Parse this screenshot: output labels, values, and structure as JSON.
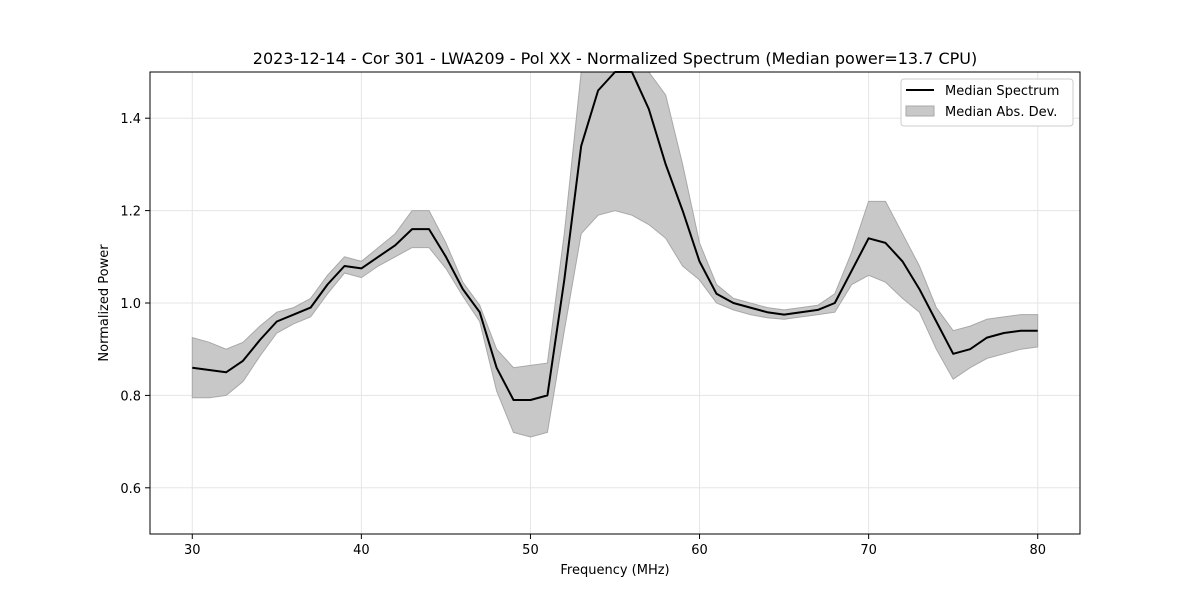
{
  "chart_data": {
    "type": "area",
    "title": "2023-12-14 - Cor 301 - LWA209 - Pol XX - Normalized Spectrum (Median power=13.7 CPU)",
    "xlabel": "Frequency (MHz)",
    "ylabel": "Normalized Power",
    "xlim": [
      27.5,
      82.5
    ],
    "ylim": [
      0.5,
      1.5
    ],
    "xticks": [
      30,
      40,
      50,
      60,
      70,
      80
    ],
    "yticks": [
      0.6,
      0.8,
      1.0,
      1.2,
      1.4
    ],
    "xtick_labels": [
      "30",
      "40",
      "50",
      "60",
      "70",
      "80"
    ],
    "ytick_labels": [
      "0.6",
      "0.8",
      "1.0",
      "1.2",
      "1.4"
    ],
    "grid": true,
    "legend_position": "upper right",
    "legend": [
      "Median Spectrum",
      "Median Abs. Dev."
    ],
    "colors": {
      "line": "#000000",
      "band": "#c8c8c8",
      "band_edge": "#a8a8a8",
      "grid": "#e5e5e5"
    },
    "x": [
      30,
      31,
      32,
      33,
      34,
      35,
      36,
      37,
      38,
      39,
      40,
      41,
      42,
      43,
      44,
      45,
      46,
      47,
      48,
      49,
      50,
      51,
      52,
      53,
      54,
      55,
      56,
      57,
      58,
      59,
      60,
      61,
      62,
      63,
      64,
      65,
      66,
      67,
      68,
      69,
      70,
      71,
      72,
      73,
      74,
      75,
      76,
      77,
      78,
      79,
      80
    ],
    "series": [
      {
        "name": "Median Spectrum",
        "type": "line",
        "values": [
          0.86,
          0.855,
          0.85,
          0.875,
          0.92,
          0.96,
          0.975,
          0.99,
          1.04,
          1.08,
          1.075,
          1.1,
          1.125,
          1.16,
          1.16,
          1.1,
          1.03,
          0.98,
          0.86,
          0.79,
          0.79,
          0.8,
          1.05,
          1.34,
          1.46,
          1.5,
          1.5,
          1.42,
          1.3,
          1.2,
          1.09,
          1.02,
          1.0,
          0.99,
          0.98,
          0.975,
          0.98,
          0.985,
          1.0,
          1.07,
          1.14,
          1.13,
          1.09,
          1.03,
          0.96,
          0.89,
          0.9,
          0.925,
          0.935,
          0.94,
          0.94
        ]
      },
      {
        "name": "Median Abs. Dev.",
        "type": "band",
        "lower": [
          0.795,
          0.795,
          0.8,
          0.83,
          0.885,
          0.935,
          0.955,
          0.97,
          1.02,
          1.065,
          1.055,
          1.08,
          1.1,
          1.12,
          1.12,
          1.075,
          1.015,
          0.96,
          0.81,
          0.72,
          0.71,
          0.72,
          0.94,
          1.15,
          1.19,
          1.2,
          1.19,
          1.17,
          1.14,
          1.08,
          1.05,
          1.0,
          0.985,
          0.975,
          0.968,
          0.965,
          0.97,
          0.975,
          0.98,
          1.04,
          1.06,
          1.045,
          1.01,
          0.98,
          0.9,
          0.835,
          0.86,
          0.88,
          0.89,
          0.9,
          0.905
        ],
        "upper": [
          0.925,
          0.915,
          0.9,
          0.915,
          0.95,
          0.98,
          0.99,
          1.01,
          1.06,
          1.1,
          1.09,
          1.12,
          1.15,
          1.2,
          1.2,
          1.13,
          1.045,
          0.995,
          0.9,
          0.86,
          0.865,
          0.87,
          1.15,
          1.5,
          1.5,
          1.5,
          1.5,
          1.5,
          1.45,
          1.3,
          1.13,
          1.04,
          1.01,
          1.0,
          0.99,
          0.985,
          0.99,
          0.995,
          1.02,
          1.11,
          1.22,
          1.22,
          1.15,
          1.08,
          0.99,
          0.94,
          0.95,
          0.965,
          0.97,
          0.975,
          0.975
        ]
      }
    ]
  }
}
